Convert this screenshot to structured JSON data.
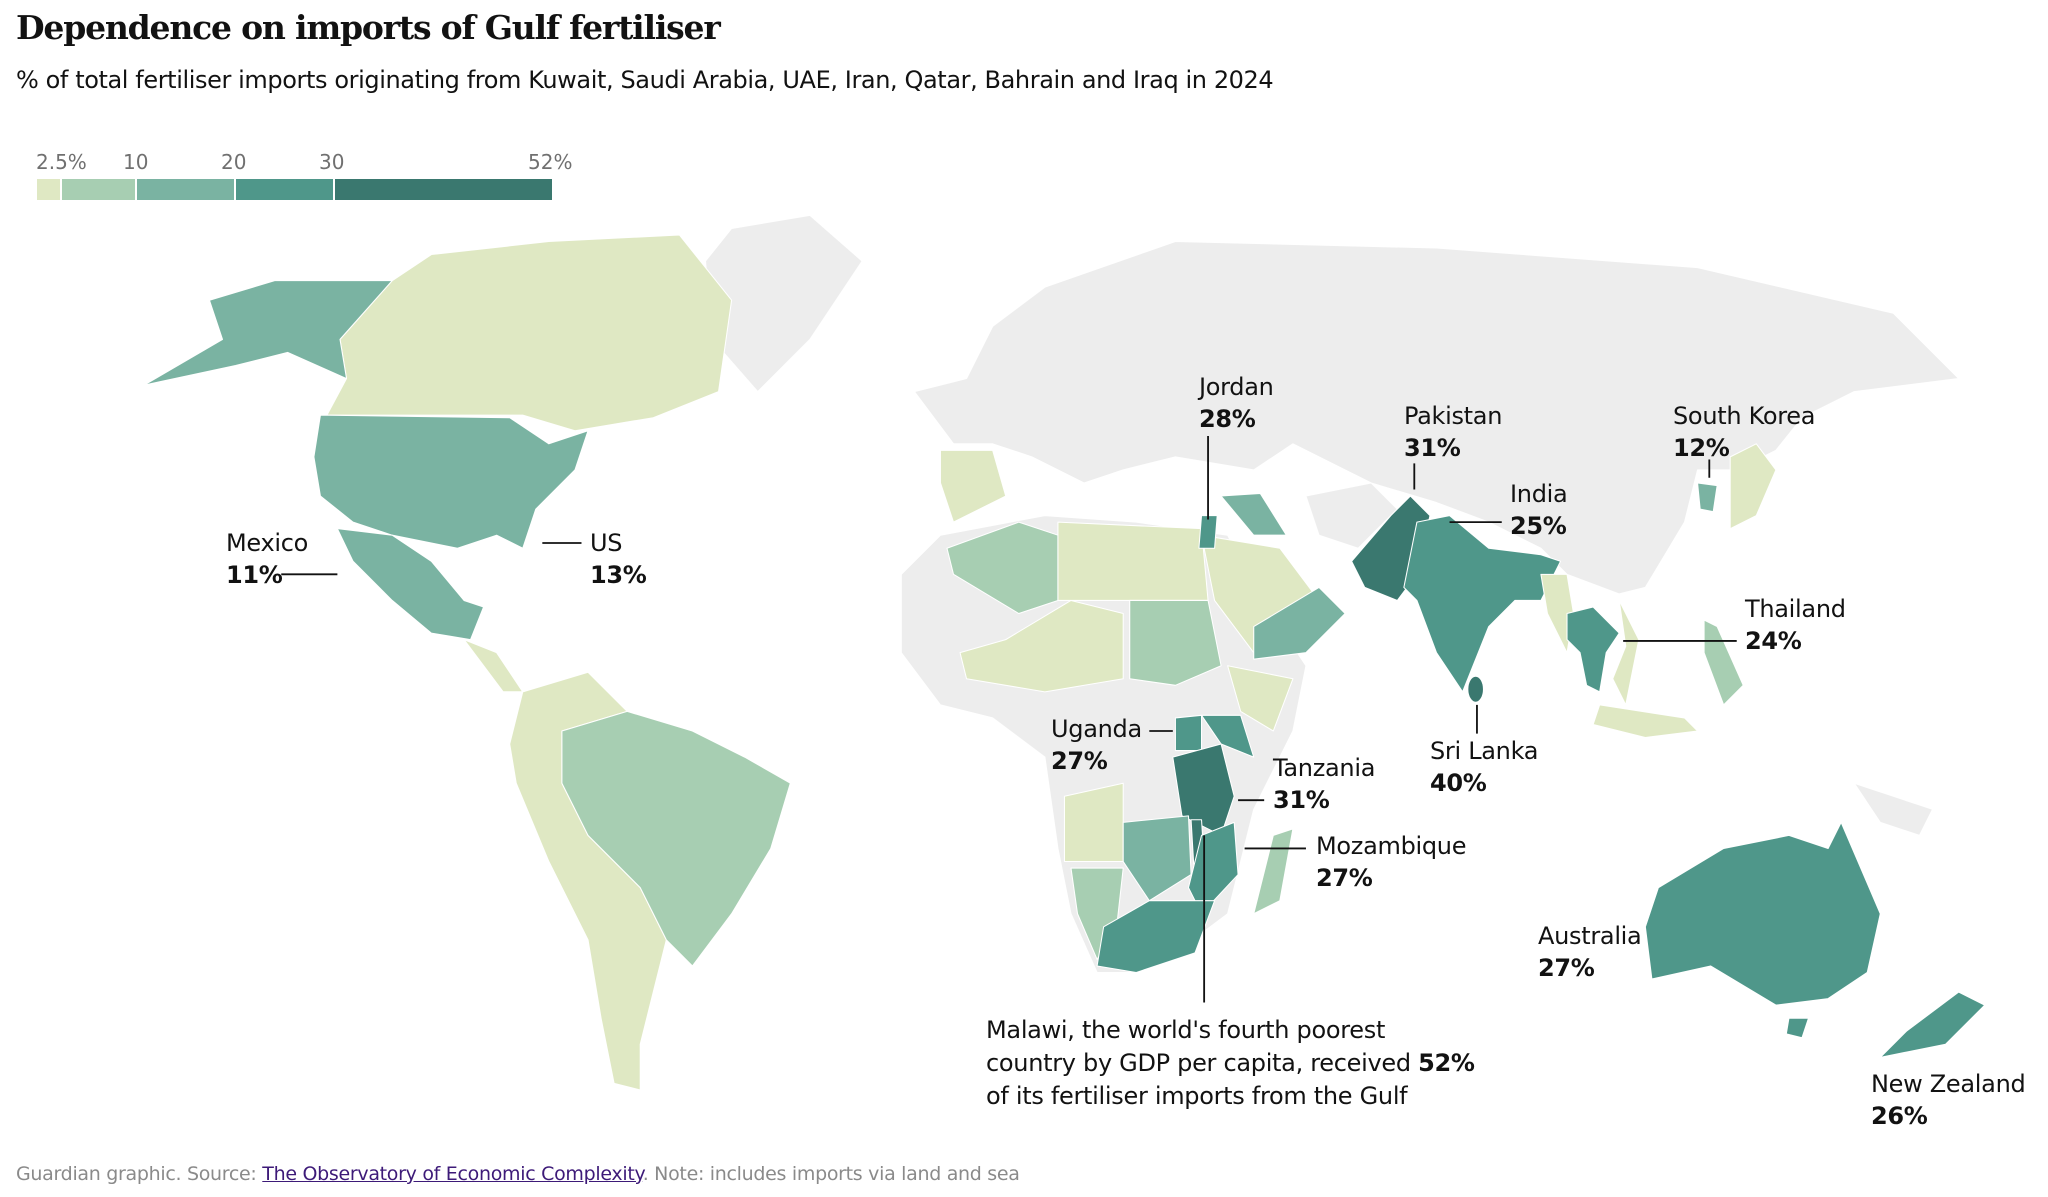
{
  "title": "Dependence on imports of Gulf fertiliser",
  "subtitle": "% of total fertiliser imports originating from Kuwait, Saudi Arabia, UAE, Iran, Qatar, Bahrain and Iraq in 2024",
  "legend": {
    "ticks": [
      "2.5%",
      "10",
      "20",
      "30",
      "52%"
    ],
    "bins": [
      {
        "range": "<2.5",
        "color": "#dfe8c3"
      },
      {
        "range": "2.5-10",
        "color": "#a7ceb2"
      },
      {
        "range": "10-20",
        "color": "#7ab3a2"
      },
      {
        "range": "20-30",
        "color": "#4f978a"
      },
      {
        "range": "30-52",
        "color": "#3a786f"
      }
    ],
    "no_data_color": "#ededed"
  },
  "annotations": {
    "mexico": {
      "name": "Mexico",
      "value": "11%"
    },
    "us": {
      "name": "US",
      "value": "13%"
    },
    "jordan": {
      "name": "Jordan",
      "value": "28%"
    },
    "pakistan": {
      "name": "Pakistan",
      "value": "31%"
    },
    "india": {
      "name": "India",
      "value": "25%"
    },
    "south_korea": {
      "name": "South Korea",
      "value": "12%"
    },
    "thailand": {
      "name": "Thailand",
      "value": "24%"
    },
    "sri_lanka": {
      "name": "Sri Lanka",
      "value": "40%"
    },
    "uganda": {
      "name": "Uganda",
      "value": "27%"
    },
    "tanzania": {
      "name": "Tanzania",
      "value": "31%"
    },
    "mozambique": {
      "name": "Mozambique",
      "value": "27%"
    },
    "australia": {
      "name": "Australia",
      "value": "27%"
    },
    "new_zealand": {
      "name": "New Zealand",
      "value": "26%"
    }
  },
  "malawi": {
    "line1": "Malawi, the world's fourth poorest",
    "line2_pre": "country by GDP per capita, received ",
    "line2_value": "52%",
    "line3": "of its fertiliser imports from the Gulf"
  },
  "footer": {
    "prefix": "Guardian graphic. Source: ",
    "source_link": "The Observatory of Economic Complexity",
    "suffix": ". Note: includes imports via land and sea"
  }
}
